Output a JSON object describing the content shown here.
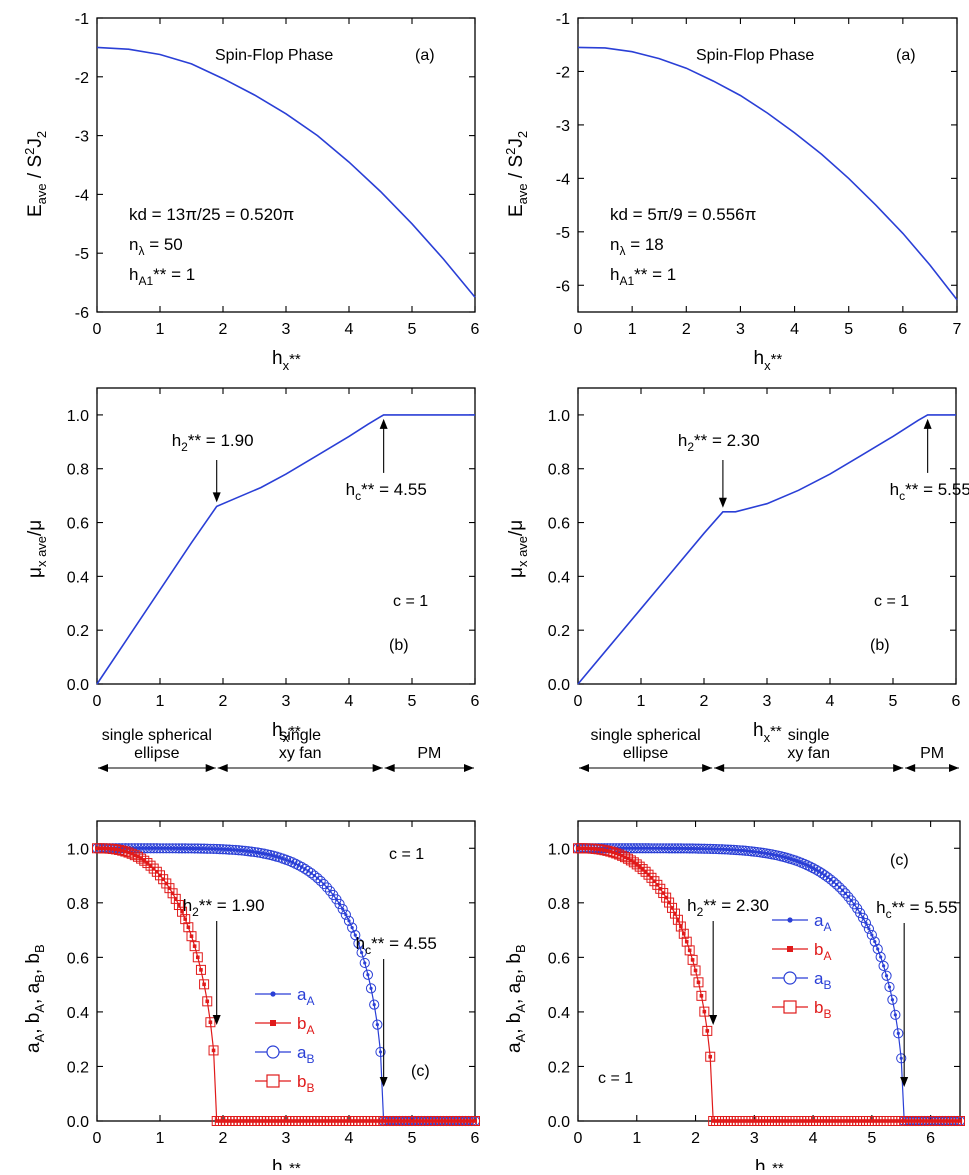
{
  "colors": {
    "blue": "#2a3fd6",
    "red": "#e01a1a",
    "black": "#000000"
  },
  "chart_data": [
    {
      "id": "p1",
      "type": "line",
      "panel": "(a)",
      "title": "Spin-Flop Phase",
      "xlabel": {
        "main": "h",
        "sub": "x",
        "sup": "**"
      },
      "ylabel": {
        "main": "E",
        "sub": "ave",
        "rest": " / S",
        "sup2": "2",
        "rest2": "J",
        "sub2": "2"
      },
      "xlim": [
        0,
        6
      ],
      "ylim": [
        -6,
        -1
      ],
      "xticks": [
        0,
        1,
        2,
        3,
        4,
        5,
        6
      ],
      "xticklabels": [
        "0",
        "1",
        "2",
        "3",
        "4",
        "5",
        "6"
      ],
      "yticks": [
        -6,
        -5,
        -4,
        -3,
        -2,
        -1
      ],
      "yticklabels": [
        "-6",
        "-5",
        "-4",
        "-3",
        "-2",
        "-1"
      ],
      "series": [
        {
          "name": "E_ave",
          "color": "#2a3fd6",
          "x": [
            0,
            0.5,
            1,
            1.5,
            2,
            2.5,
            3,
            3.5,
            4,
            4.5,
            5,
            5.5,
            6
          ],
          "y": [
            -1.5,
            -1.53,
            -1.62,
            -1.78,
            -2.03,
            -2.31,
            -2.63,
            -3.0,
            -3.45,
            -3.95,
            -4.5,
            -5.1,
            -5.75
          ]
        }
      ],
      "params": [
        {
          "main": "kd = 13π/25 = 0.520π"
        },
        {
          "main": "n",
          "sub": "λ",
          "rest": " = 50"
        },
        {
          "main": "h",
          "sub": "A1",
          "rest": "** = 1"
        }
      ]
    },
    {
      "id": "p2",
      "type": "line",
      "panel": "(a)",
      "title": "Spin-Flop Phase",
      "xlabel": {
        "main": "h",
        "sub": "x",
        "sup": "**"
      },
      "ylabel": {
        "main": "E",
        "sub": "ave",
        "rest": " / S",
        "sup2": "2",
        "rest2": "J",
        "sub2": "2"
      },
      "xlim": [
        0,
        7
      ],
      "ylim": [
        -6.5,
        -1
      ],
      "xticks": [
        0,
        1,
        2,
        3,
        4,
        5,
        6,
        7
      ],
      "xticklabels": [
        "0",
        "1",
        "2",
        "3",
        "4",
        "5",
        "6",
        "7"
      ],
      "yticks": [
        -6,
        -5,
        -4,
        -3,
        -2,
        -1
      ],
      "yticklabels": [
        "-6",
        "-5",
        "-4",
        "-3",
        "-2",
        "-1"
      ],
      "series": [
        {
          "name": "E_ave",
          "color": "#2a3fd6",
          "x": [
            0,
            0.5,
            1,
            1.5,
            2,
            2.5,
            3,
            3.5,
            4,
            4.5,
            5,
            5.5,
            6,
            6.5,
            7
          ],
          "y": [
            -1.55,
            -1.56,
            -1.63,
            -1.76,
            -1.94,
            -2.18,
            -2.45,
            -2.78,
            -3.15,
            -3.55,
            -4.0,
            -4.5,
            -5.03,
            -5.62,
            -6.27
          ]
        }
      ],
      "params": [
        {
          "main": "kd = 5π/9 = 0.556π"
        },
        {
          "main": "n",
          "sub": "λ",
          "rest": " = 18"
        },
        {
          "main": "h",
          "sub": "A1",
          "rest": "** = 1"
        }
      ]
    },
    {
      "id": "p3",
      "type": "line",
      "panel": "(b)",
      "xlabel": {
        "main": "h",
        "sub": "x",
        "sup": "**"
      },
      "ylabel": {
        "main": "μ",
        "sub": "x ave",
        "rest": "/μ"
      },
      "xlim": [
        0,
        6
      ],
      "ylim": [
        0,
        1.1
      ],
      "xticks": [
        0,
        1,
        2,
        3,
        4,
        5,
        6
      ],
      "xticklabels": [
        "0",
        "1",
        "2",
        "3",
        "4",
        "5",
        "6"
      ],
      "yticks": [
        0,
        0.2,
        0.4,
        0.6,
        0.8,
        1.0
      ],
      "yticklabels": [
        "0.0",
        "0.2",
        "0.4",
        "0.6",
        "0.8",
        "1.0"
      ],
      "series": [
        {
          "name": "mu_x_ave",
          "color": "#2a3fd6",
          "x": [
            0,
            0.5,
            1,
            1.5,
            1.9,
            2.2,
            2.6,
            3.0,
            3.5,
            4.0,
            4.3,
            4.55,
            5.0,
            5.5,
            6.0
          ],
          "y": [
            0,
            0.175,
            0.35,
            0.525,
            0.66,
            0.69,
            0.73,
            0.78,
            0.85,
            0.92,
            0.965,
            1.0,
            1.0,
            1.0,
            1.0
          ]
        }
      ],
      "annotations": [
        {
          "main": "h",
          "sub": "2",
          "rest": "** = 1.90",
          "x": 1.9,
          "y": 0.66
        },
        {
          "main": "h",
          "sub": "c",
          "rest": "** = 4.55",
          "x": 4.55,
          "y": 1.0
        }
      ],
      "c_label": "c = 1"
    },
    {
      "id": "p4",
      "type": "line",
      "panel": "(b)",
      "xlabel": {
        "main": "h",
        "sub": "x",
        "sup": "**"
      },
      "ylabel": {
        "main": "μ",
        "sub": "x ave",
        "rest": "/μ"
      },
      "xlim": [
        0,
        6
      ],
      "ylim": [
        0,
        1.1
      ],
      "xticks": [
        0,
        1,
        2,
        3,
        4,
        5,
        6
      ],
      "xticklabels": [
        "0",
        "1",
        "2",
        "3",
        "4",
        "5",
        "6"
      ],
      "yticks": [
        0,
        0.2,
        0.4,
        0.6,
        0.8,
        1.0
      ],
      "yticklabels": [
        "0.0",
        "0.2",
        "0.4",
        "0.6",
        "0.8",
        "1.0"
      ],
      "series": [
        {
          "name": "mu_x_ave",
          "color": "#2a3fd6",
          "x": [
            0,
            0.5,
            1,
            1.5,
            2.0,
            2.3,
            2.5,
            3.0,
            3.5,
            4.0,
            4.5,
            5.0,
            5.4,
            5.55,
            6.0
          ],
          "y": [
            0,
            0.14,
            0.28,
            0.42,
            0.56,
            0.64,
            0.64,
            0.67,
            0.72,
            0.78,
            0.85,
            0.92,
            0.98,
            1.0,
            1.0
          ]
        }
      ],
      "annotations": [
        {
          "main": "h",
          "sub": "2",
          "rest": "** = 2.30",
          "x": 2.3,
          "y": 0.64
        },
        {
          "main": "h",
          "sub": "c",
          "rest": "** = 5.55",
          "x": 5.55,
          "y": 1.0
        }
      ],
      "c_label": "c = 1"
    },
    {
      "id": "p5",
      "type": "scatter",
      "panel": "(c)",
      "xlabel": {
        "main": "h",
        "sub": "x",
        "sup": "**"
      },
      "ylabel": {
        "text": "a_A, b_A, a_B, b_B"
      },
      "xlim": [
        0,
        6
      ],
      "ylim": [
        0,
        1.1
      ],
      "xticks": [
        0,
        1,
        2,
        3,
        4,
        5,
        6
      ],
      "xticklabels": [
        "0",
        "1",
        "2",
        "3",
        "4",
        "5",
        "6"
      ],
      "yticks": [
        0,
        0.2,
        0.4,
        0.6,
        0.8,
        1.0
      ],
      "yticklabels": [
        "0.0",
        "0.2",
        "0.4",
        "0.6",
        "0.8",
        "1.0"
      ],
      "h2": 1.9,
      "hc": 4.55,
      "annotations": [
        {
          "main": "h",
          "sub": "2",
          "rest": "** = 1.90",
          "x": 1.9
        },
        {
          "main": "h",
          "sub": "c",
          "rest": "** = 4.55",
          "x": 4.55
        }
      ],
      "phases": [
        "single spherical",
        "ellipse",
        "single",
        "xy fan",
        "PM"
      ],
      "legend": [
        {
          "main": "a",
          "sub": "A",
          "color": "#2a3fd6",
          "marker": "dot"
        },
        {
          "main": "b",
          "sub": "A",
          "color": "#e01a1a",
          "marker": "smallsquare"
        },
        {
          "main": "a",
          "sub": "B",
          "color": "#2a3fd6",
          "marker": "circle"
        },
        {
          "main": "b",
          "sub": "B",
          "color": "#e01a1a",
          "marker": "square"
        }
      ],
      "c_label": "c = 1"
    },
    {
      "id": "p6",
      "type": "scatter",
      "panel": "(c)",
      "xlabel": {
        "main": "h",
        "sub": "x",
        "sup": "**"
      },
      "ylabel": {
        "text": "a_A, b_A, a_B, b_B"
      },
      "xlim": [
        0,
        6.5
      ],
      "ylim": [
        0,
        1.1
      ],
      "xticks": [
        0,
        1,
        2,
        3,
        4,
        5,
        6
      ],
      "xticklabels": [
        "0",
        "1",
        "2",
        "3",
        "4",
        "5",
        "6"
      ],
      "yticks": [
        0,
        0.2,
        0.4,
        0.6,
        0.8,
        1.0
      ],
      "yticklabels": [
        "0.0",
        "0.2",
        "0.4",
        "0.6",
        "0.8",
        "1.0"
      ],
      "h2": 2.3,
      "hc": 5.55,
      "annotations": [
        {
          "main": "h",
          "sub": "2",
          "rest": "** = 2.30",
          "x": 2.3
        },
        {
          "main": "h",
          "sub": "c",
          "rest": "** = 5.55",
          "x": 5.55
        }
      ],
      "phases": [
        "single spherical",
        "ellipse",
        "single",
        "xy fan",
        "PM"
      ],
      "legend": [
        {
          "main": "a",
          "sub": "A",
          "color": "#2a3fd6",
          "marker": "dot"
        },
        {
          "main": "b",
          "sub": "A",
          "color": "#e01a1a",
          "marker": "smallsquare"
        },
        {
          "main": "a",
          "sub": "B",
          "color": "#2a3fd6",
          "marker": "circle"
        },
        {
          "main": "b",
          "sub": "B",
          "color": "#e01a1a",
          "marker": "square"
        }
      ],
      "c_label": "c = 1"
    }
  ]
}
